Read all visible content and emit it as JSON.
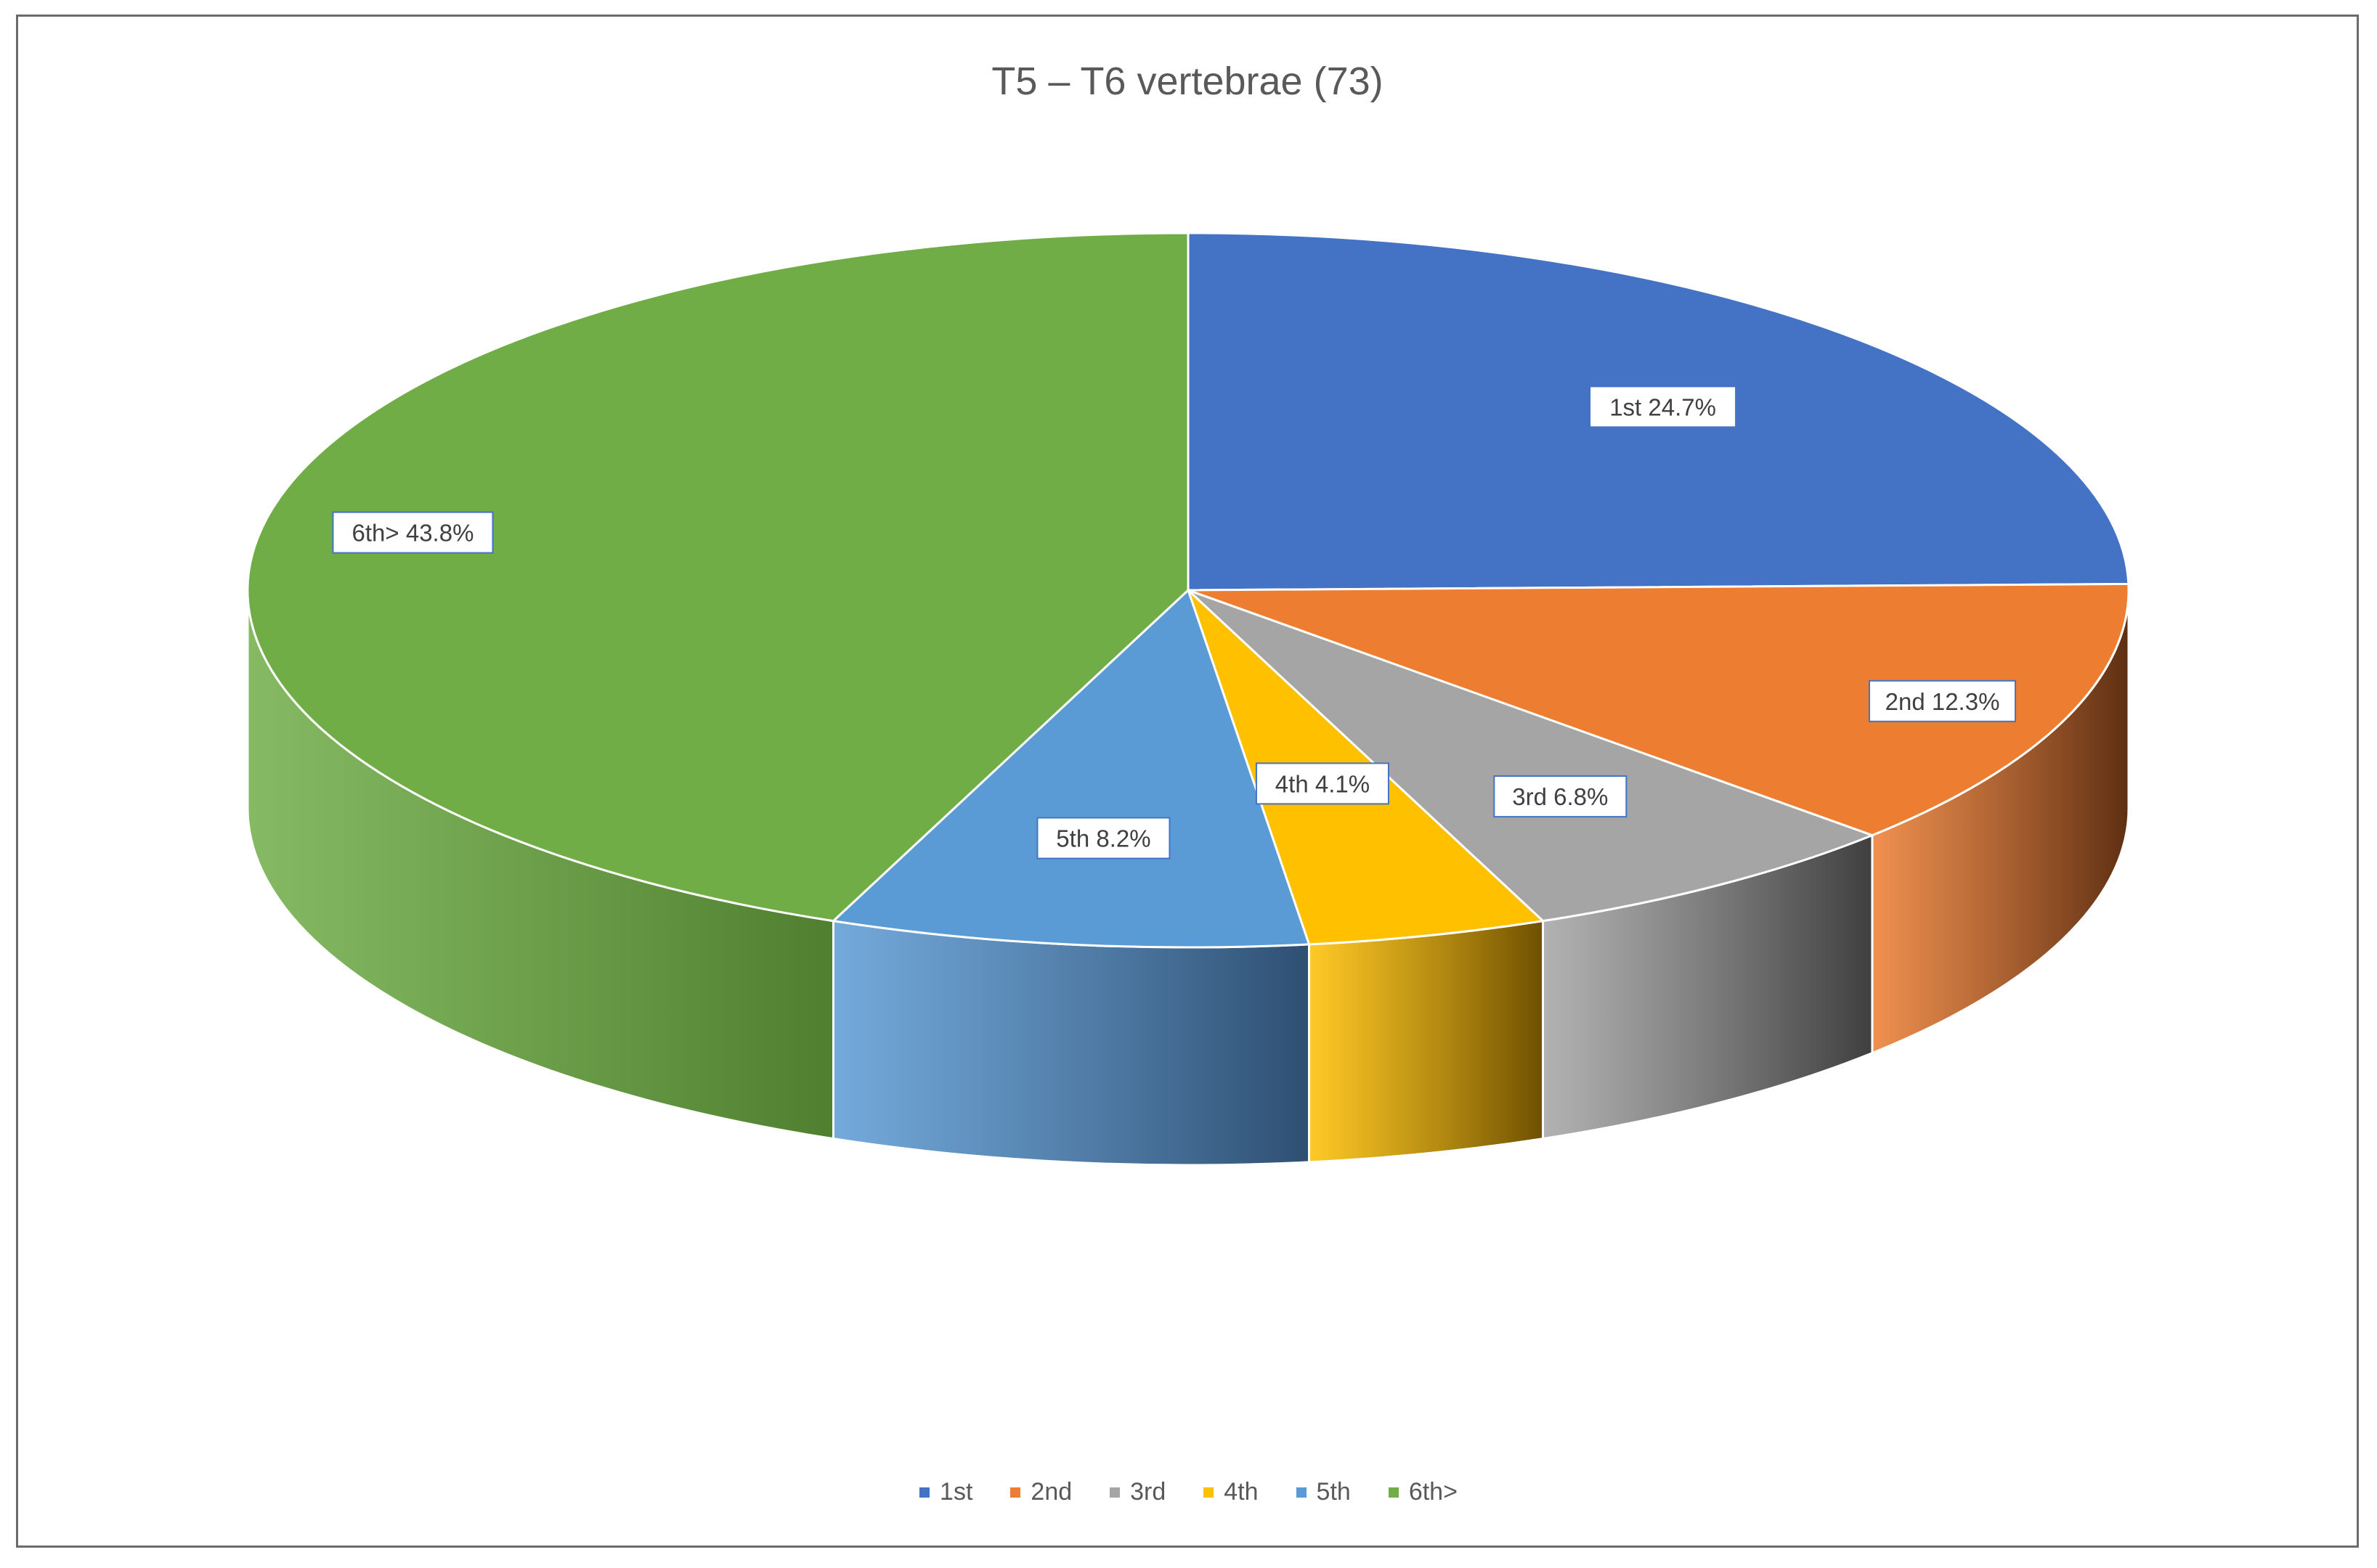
{
  "chart_data": {
    "type": "pie",
    "title": "T5 – T6 vertebrae (73)",
    "categories": [
      "1st",
      "2nd",
      "3rd",
      "4th",
      "5th",
      "6th>"
    ],
    "values": [
      24.7,
      12.3,
      6.8,
      4.1,
      8.2,
      43.8
    ],
    "unit": "%",
    "data_labels": [
      "1st 24.7%",
      "2nd 12.3%",
      "3rd 6.8%",
      "4th 4.1%",
      "5th 8.2%",
      "6th> 43.8%"
    ],
    "colors": [
      "#4472C4",
      "#ED7D31",
      "#A5A5A5",
      "#FFC000",
      "#5B9BD5",
      "#70AD47"
    ],
    "side_colors": [
      "#2F528F",
      "#5E2F12",
      "#3F3F3F",
      "#6E5000",
      "#2E4F72",
      "#4F7F2F"
    ],
    "style": "3d",
    "legend_position": "bottom"
  }
}
